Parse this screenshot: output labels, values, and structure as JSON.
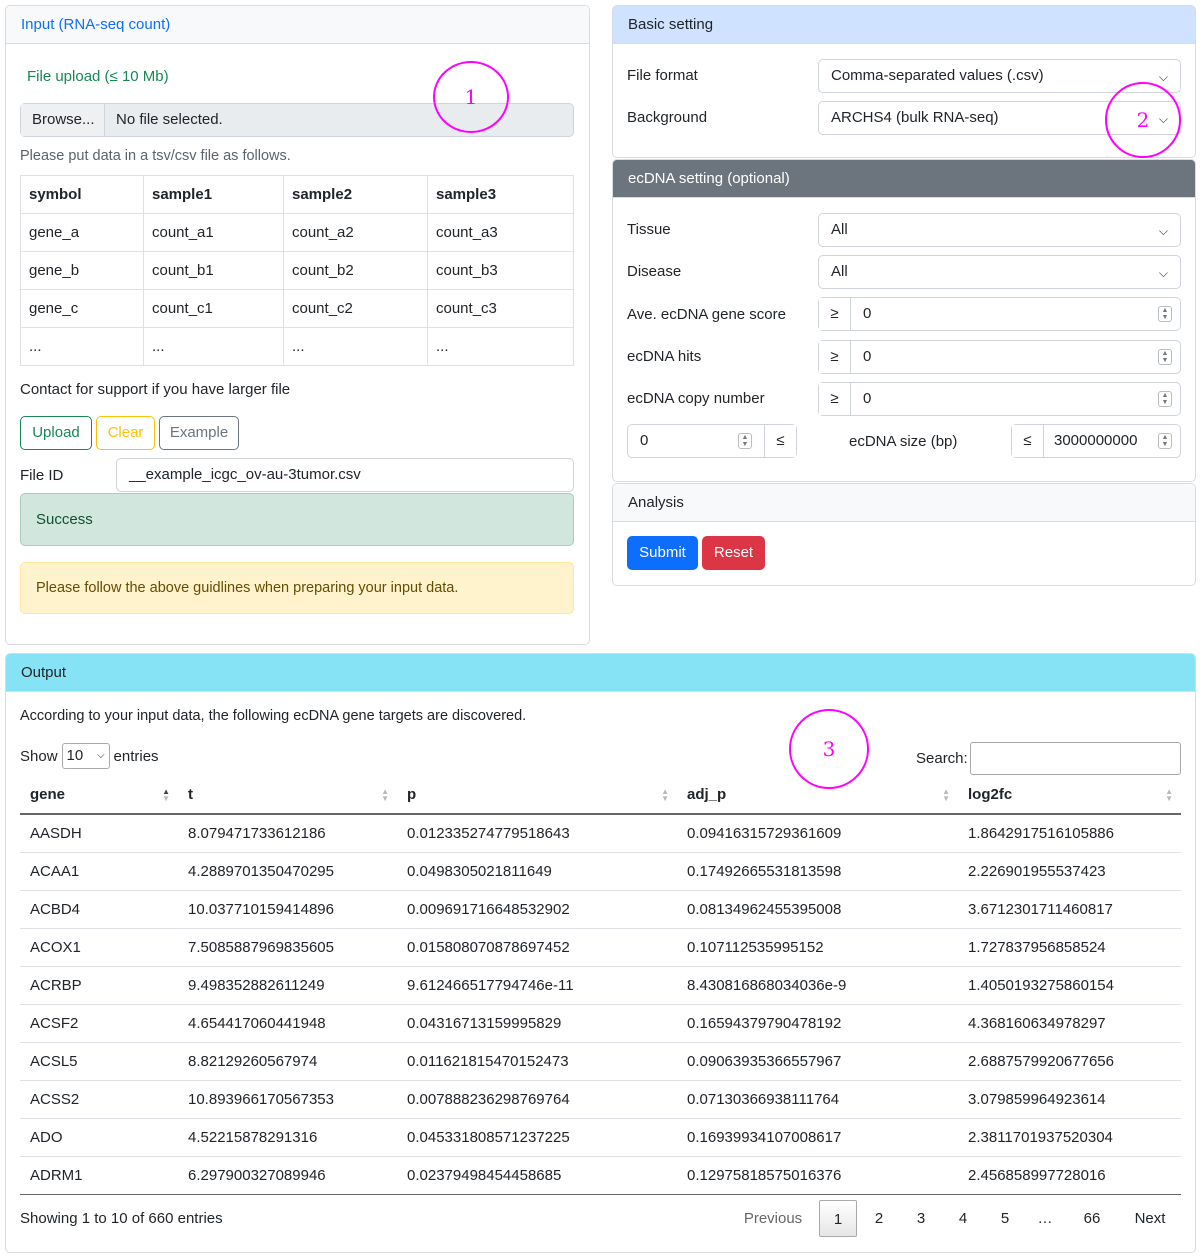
{
  "input_card": {
    "header": "Input (RNA-seq count)",
    "upload_label": "File upload (≤ 10 Mb)",
    "browse_label": "Browse...",
    "file_status": "No file selected.",
    "instruction": "Please put data in a tsv/csv file as follows.",
    "table_headers": [
      "symbol",
      "sample1",
      "sample2",
      "sample3"
    ],
    "table_rows": [
      [
        "gene_a",
        "count_a1",
        "count_a2",
        "count_a3"
      ],
      [
        "gene_b",
        "count_b1",
        "count_b2",
        "count_b3"
      ],
      [
        "gene_c",
        "count_c1",
        "count_c2",
        "count_c3"
      ],
      [
        "...",
        "...",
        "...",
        "..."
      ]
    ],
    "contact_note": "Contact for support if you have larger file",
    "buttons": {
      "upload": "Upload",
      "clear": "Clear",
      "example": "Example"
    },
    "file_id_label": "File ID",
    "file_id_value": "__example_icgc_ov-au-3tumor.csv",
    "success_text": "Success",
    "warning_text": "Please follow the above guidlines when preparing your input data."
  },
  "basic_card": {
    "header": "Basic setting",
    "file_format_label": "File format",
    "file_format_value": "Comma-separated values (.csv)",
    "background_label": "Background",
    "background_value": "ARCHS4 (bulk RNA-seq)"
  },
  "ecdna_card": {
    "header": "ecDNA setting (optional)",
    "tissue_label": "Tissue",
    "tissue_value": "All",
    "disease_label": "Disease",
    "disease_value": "All",
    "gene_score_label": "Ave. ecDNA gene score",
    "gene_score_value": "0",
    "hits_label": "ecDNA hits",
    "hits_value": "0",
    "copy_number_label": "ecDNA copy number",
    "copy_number_value": "0",
    "size_min_value": "0",
    "size_label": "ecDNA size (bp)",
    "size_max_value": "3000000000",
    "ge_symbol": "≥",
    "le_symbol": "≤"
  },
  "analysis_card": {
    "header": "Analysis",
    "submit": "Submit",
    "reset": "Reset"
  },
  "output_card": {
    "header": "Output",
    "description": "According to your input data, the following ecDNA gene targets are discovered.",
    "show_label": "Show",
    "show_value": "10",
    "entries_label": "entries",
    "search_label": "Search:",
    "columns": [
      "gene",
      "t",
      "p",
      "adj_p",
      "log2fc"
    ],
    "rows": [
      [
        "AASDH",
        "8.079471733612186",
        "0.012335274779518643",
        "0.09416315729361609",
        "1.8642917516105886"
      ],
      [
        "ACAA1",
        "4.2889701350470295",
        "0.0498305021811649",
        "0.17492665531813598",
        "2.226901955537423"
      ],
      [
        "ACBD4",
        "10.037710159414896",
        "0.009691716648532902",
        "0.08134962455395008",
        "3.6712301711460817"
      ],
      [
        "ACOX1",
        "7.5085887969835605",
        "0.015808070878697452",
        "0.107112535995152",
        "1.727837956858524"
      ],
      [
        "ACRBP",
        "9.498352882611249",
        "9.612466517794746e-11",
        "8.430816868034036e-9",
        "1.4050193275860154"
      ],
      [
        "ACSF2",
        "4.654417060441948",
        "0.04316713159995829",
        "0.16594379790478192",
        "4.368160634978297"
      ],
      [
        "ACSL5",
        "8.82129260567974",
        "0.011621815470152473",
        "0.09063935366557967",
        "2.6887579920677656"
      ],
      [
        "ACSS2",
        "10.893966170567353",
        "0.007888236298769764",
        "0.07130366938111764",
        "3.079859964923614"
      ],
      [
        "ADO",
        "4.52215878291316",
        "0.045331808571237225",
        "0.16939934107008617",
        "2.3811701937520304"
      ],
      [
        "ADRM1",
        "6.297900327089946",
        "0.02379498454458685",
        "0.12975818575016376",
        "2.456858997728016"
      ]
    ],
    "info": "Showing 1 to 10 of 660 entries",
    "pagination": {
      "previous": "Previous",
      "pages": [
        "1",
        "2",
        "3",
        "4",
        "5"
      ],
      "ellipsis": "…",
      "last": "66",
      "next": "Next"
    }
  },
  "annotations": [
    "1",
    "2",
    "3"
  ],
  "colors": {
    "primary": "#0d6efd",
    "danger": "#dc3545",
    "highlight": "#ff00ff",
    "output_header": "#86e3f5",
    "ecdna_header": "#6c757d",
    "basic_header": "#cfe2ff"
  }
}
